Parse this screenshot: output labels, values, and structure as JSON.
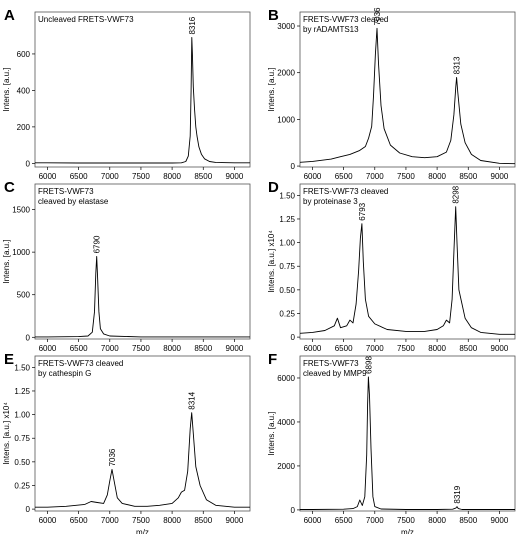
{
  "chart_data": [
    {
      "type": "line",
      "panel_label": "A",
      "title_lines": [
        "Uncleaved FRETS-VWF73"
      ],
      "ylabel": "Intens. [a.u.]",
      "xlabel": "",
      "xlim": [
        5800,
        9250
      ],
      "ylim": [
        -20,
        830
      ],
      "xticks": [
        6000,
        6500,
        7000,
        7500,
        8000,
        8500,
        9000
      ],
      "yticks": [
        0,
        200,
        400,
        600
      ],
      "peaks": [
        {
          "label": "8316",
          "x": 8316,
          "y": 690
        }
      ],
      "x": [
        5800,
        6000,
        6500,
        7000,
        7500,
        8000,
        8150,
        8220,
        8260,
        8290,
        8305,
        8316,
        8325,
        8340,
        8360,
        8380,
        8400,
        8430,
        8470,
        8520,
        8600,
        8700,
        9000,
        9250
      ],
      "y": [
        3,
        3,
        2,
        2,
        2,
        2,
        3,
        10,
        40,
        150,
        400,
        690,
        600,
        420,
        300,
        200,
        150,
        90,
        50,
        25,
        10,
        5,
        3,
        3
      ]
    },
    {
      "type": "line",
      "panel_label": "B",
      "title_lines": [
        "FRETS-VWF73 cleaved",
        "by rADAMTS13"
      ],
      "ylabel": "Intens. [a.u.]",
      "xlabel": "",
      "xlim": [
        5800,
        9250
      ],
      "ylim": [
        -20,
        3300
      ],
      "xticks": [
        6000,
        6500,
        7000,
        7500,
        8000,
        8500,
        9000
      ],
      "yticks": [
        0,
        1000,
        2000,
        3000
      ],
      "peaks": [
        {
          "label": "7036",
          "x": 7036,
          "y": 2950
        },
        {
          "label": "8313",
          "x": 8313,
          "y": 1900
        }
      ],
      "x": [
        5800,
        6000,
        6300,
        6450,
        6600,
        6750,
        6850,
        6900,
        6950,
        6980,
        7010,
        7036,
        7060,
        7100,
        7150,
        7250,
        7400,
        7600,
        7800,
        8000,
        8150,
        8220,
        8270,
        8300,
        8313,
        8330,
        8380,
        8450,
        8550,
        8700,
        9000,
        9250
      ],
      "y": [
        80,
        100,
        150,
        200,
        250,
        330,
        420,
        600,
        850,
        1500,
        2400,
        2950,
        2200,
        1300,
        800,
        450,
        280,
        200,
        180,
        200,
        300,
        550,
        1100,
        1700,
        1900,
        1600,
        900,
        500,
        250,
        120,
        60,
        50
      ]
    },
    {
      "type": "line",
      "panel_label": "C",
      "title_lines": [
        "FRETS-VWF73",
        "cleaved by elastase"
      ],
      "ylabel": "Intens. [a.u.]",
      "xlabel": "",
      "xlim": [
        5800,
        9250
      ],
      "ylim": [
        -20,
        1800
      ],
      "xticks": [
        6000,
        6500,
        7000,
        7500,
        8000,
        8500,
        9000
      ],
      "yticks": [
        0,
        500,
        1000,
        1500
      ],
      "peaks": [
        {
          "label": "6790",
          "x": 6790,
          "y": 950
        }
      ],
      "x": [
        5800,
        6000,
        6500,
        6650,
        6720,
        6755,
        6775,
        6790,
        6805,
        6825,
        6850,
        6900,
        7000,
        7500,
        8000,
        8500,
        9000,
        9250
      ],
      "y": [
        5,
        5,
        8,
        15,
        60,
        300,
        750,
        950,
        700,
        300,
        100,
        40,
        15,
        5,
        5,
        5,
        5,
        5
      ]
    },
    {
      "type": "line",
      "panel_label": "D",
      "title_lines": [
        "FRETS-VWF73 cleaved",
        "by proteinase 3"
      ],
      "ylabel": "Intens. [a.u.] x10⁴",
      "xlabel": "",
      "xlim": [
        5800,
        9250
      ],
      "ylim": [
        -0.02,
        1.62
      ],
      "xticks": [
        6000,
        6500,
        7000,
        7500,
        8000,
        8500,
        9000
      ],
      "yticks": [
        0,
        0.25,
        0.5,
        0.75,
        1.0,
        1.25,
        1.5
      ],
      "ytick_labels": [
        "0",
        "0.25",
        "0.50",
        "0.75",
        "1.00",
        "1.25",
        "1.50"
      ],
      "peaks": [
        {
          "label": "6793",
          "x": 6793,
          "y": 1.2
        },
        {
          "label": "8298",
          "x": 8298,
          "y": 1.38
        }
      ],
      "x": [
        5800,
        6000,
        6200,
        6350,
        6400,
        6450,
        6550,
        6600,
        6650,
        6700,
        6740,
        6770,
        6793,
        6815,
        6850,
        6900,
        7000,
        7200,
        7500,
        7800,
        8000,
        8100,
        8150,
        8200,
        8240,
        8270,
        8298,
        8320,
        8350,
        8400,
        8450,
        8550,
        8700,
        9000,
        9250
      ],
      "y": [
        0.04,
        0.05,
        0.07,
        0.12,
        0.2,
        0.1,
        0.12,
        0.18,
        0.15,
        0.35,
        0.7,
        1.05,
        1.2,
        0.8,
        0.4,
        0.22,
        0.14,
        0.08,
        0.06,
        0.06,
        0.08,
        0.12,
        0.18,
        0.15,
        0.4,
        0.9,
        1.38,
        1.0,
        0.5,
        0.35,
        0.2,
        0.1,
        0.05,
        0.03,
        0.03
      ]
    },
    {
      "type": "line",
      "panel_label": "E",
      "title_lines": [
        "FRETS-VWF73 cleaved",
        "by cathespin G"
      ],
      "ylabel": "Intens. [a.u.] x10⁴",
      "xlabel": "m/z",
      "xlim": [
        5800,
        9250
      ],
      "ylim": [
        -0.02,
        1.62
      ],
      "xticks": [
        6000,
        6500,
        7000,
        7500,
        8000,
        8500,
        9000
      ],
      "yticks": [
        0,
        0.25,
        0.5,
        0.75,
        1.0,
        1.25,
        1.5
      ],
      "ytick_labels": [
        "0",
        "0.25",
        "0.50",
        "0.75",
        "1.00",
        "1.25",
        "1.50"
      ],
      "peaks": [
        {
          "label": "7036",
          "x": 7036,
          "y": 0.42
        },
        {
          "label": "8314",
          "x": 8314,
          "y": 1.02
        }
      ],
      "x": [
        5800,
        6000,
        6300,
        6600,
        6700,
        6800,
        6900,
        6960,
        7000,
        7036,
        7070,
        7120,
        7200,
        7400,
        7600,
        7800,
        8000,
        8100,
        8150,
        8200,
        8250,
        8290,
        8314,
        8340,
        8380,
        8450,
        8550,
        8700,
        9000,
        9250
      ],
      "y": [
        0.02,
        0.02,
        0.03,
        0.05,
        0.08,
        0.07,
        0.06,
        0.15,
        0.3,
        0.42,
        0.3,
        0.12,
        0.06,
        0.03,
        0.03,
        0.04,
        0.06,
        0.12,
        0.18,
        0.2,
        0.4,
        0.85,
        1.02,
        0.8,
        0.45,
        0.25,
        0.1,
        0.04,
        0.02,
        0.02
      ]
    },
    {
      "type": "line",
      "panel_label": "F",
      "title_lines": [
        "FRETS-VWF73",
        "cleaved by MMP9"
      ],
      "ylabel": "Intens. [a.u.]",
      "xlabel": "m/z",
      "xlim": [
        5800,
        9250
      ],
      "ylim": [
        -50,
        7000
      ],
      "xticks": [
        6000,
        6500,
        7000,
        7500,
        8000,
        8500,
        9000
      ],
      "yticks": [
        0,
        2000,
        4000,
        6000
      ],
      "peaks": [
        {
          "label": "6898",
          "x": 6898,
          "y": 6050
        },
        {
          "label": "8319",
          "x": 8319,
          "y": 150
        }
      ],
      "x": [
        5800,
        6000,
        6500,
        6650,
        6720,
        6760,
        6800,
        6840,
        6870,
        6885,
        6898,
        6915,
        6940,
        6970,
        7000,
        7100,
        7500,
        8000,
        8250,
        8300,
        8319,
        8340,
        8400,
        9000,
        9250
      ],
      "y": [
        20,
        20,
        30,
        60,
        150,
        450,
        200,
        600,
        2500,
        4800,
        6050,
        5200,
        2800,
        600,
        150,
        40,
        20,
        20,
        30,
        80,
        150,
        60,
        20,
        20,
        20
      ]
    }
  ]
}
